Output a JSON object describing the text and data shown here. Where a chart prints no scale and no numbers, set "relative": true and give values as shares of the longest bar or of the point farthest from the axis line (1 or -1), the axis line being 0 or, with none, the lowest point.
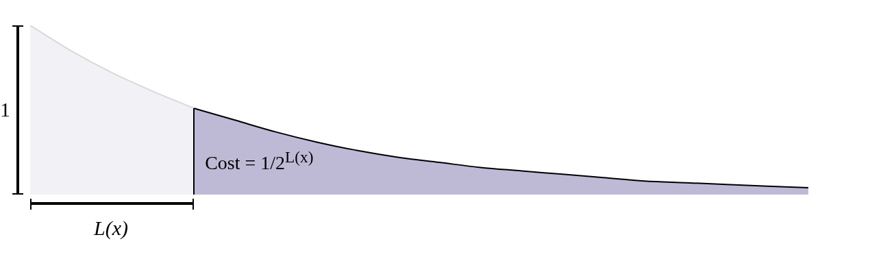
{
  "chart_data": {
    "type": "area",
    "relative": true,
    "legend": false,
    "marker": "none",
    "categories": [
      null,
      null,
      null,
      null,
      null,
      null,
      null,
      null,
      null,
      null,
      null,
      null,
      null,
      null,
      null,
      null,
      null,
      null,
      null,
      null
    ],
    "series": [
      {
        "color": "#f2f1f6",
        "values": [
          1,
          0.85,
          0.72,
          0.61,
          0.51,
          null,
          null,
          null,
          null,
          null,
          null,
          null,
          null,
          null,
          null,
          null,
          null,
          null,
          null,
          null
        ]
      },
      {
        "color": "#bebad6",
        "values": [
          null,
          null,
          null,
          null,
          0.51,
          0.44,
          0.37,
          0.31,
          0.26,
          0.22,
          0.19,
          0.16,
          0.14,
          0.12,
          0.1,
          0.08,
          0.07,
          0.06,
          0.05,
          0.04
        ]
      }
    ],
    "annotations": [
      "1",
      "L(x)",
      "Cost = 1/2$^{L(x)}$"
    ]
  }
}
